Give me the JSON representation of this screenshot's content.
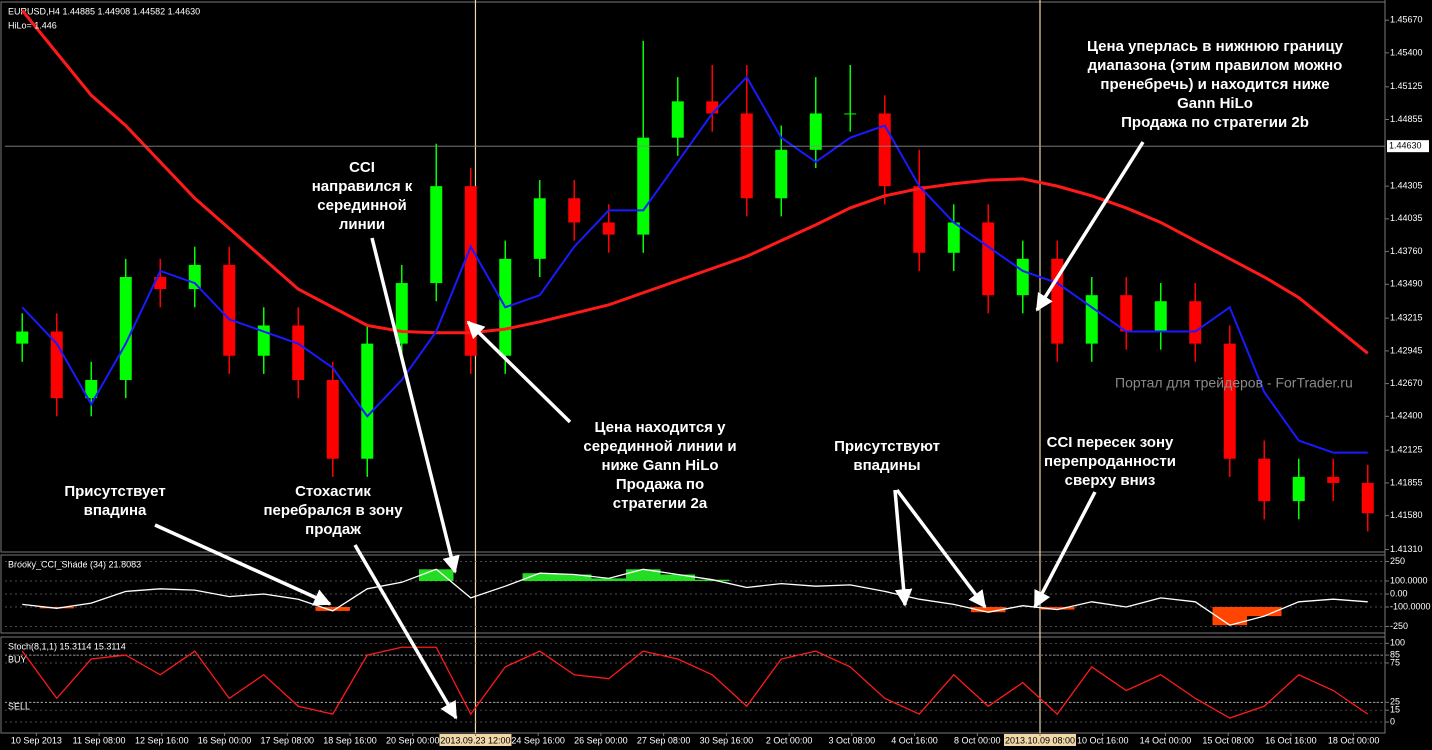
{
  "chart_data": [
    {
      "type": "candlestick",
      "title": "EURUSD,H4 1.44885 1.44908 1.44582 1.44630",
      "subtitle": "HiLo= 1.446",
      "up_color": "#00ff00",
      "down_color": "#ff0000",
      "open": [
        1.43,
        1.431,
        1.4255,
        1.427,
        1.4355,
        1.4345,
        1.4365,
        1.429,
        1.4315,
        1.427,
        1.4205,
        1.43,
        1.435,
        1.443,
        1.429,
        1.437,
        1.442,
        1.44,
        1.439,
        1.447,
        1.45,
        1.449,
        1.442,
        1.446,
        1.449,
        1.449,
        1.443,
        1.4375,
        1.44,
        1.434,
        1.437,
        1.43,
        1.434,
        1.431,
        1.4335,
        1.43,
        1.4205,
        1.417,
        1.419,
        1.4185
      ],
      "high": [
        1.4325,
        1.4325,
        1.4285,
        1.437,
        1.437,
        1.438,
        1.438,
        1.433,
        1.433,
        1.4285,
        1.4315,
        1.4365,
        1.4465,
        1.4445,
        1.4385,
        1.4435,
        1.4435,
        1.4415,
        1.455,
        1.452,
        1.453,
        1.453,
        1.448,
        1.452,
        1.453,
        1.4505,
        1.446,
        1.4415,
        1.4415,
        1.4385,
        1.4385,
        1.4355,
        1.4355,
        1.435,
        1.435,
        1.4315,
        1.422,
        1.4205,
        1.4205,
        1.42
      ],
      "low": [
        1.4285,
        1.424,
        1.424,
        1.4255,
        1.433,
        1.433,
        1.4275,
        1.4275,
        1.4255,
        1.419,
        1.419,
        1.4285,
        1.4335,
        1.4275,
        1.4275,
        1.4355,
        1.4385,
        1.4375,
        1.4375,
        1.4455,
        1.4475,
        1.4405,
        1.4405,
        1.4445,
        1.4475,
        1.4415,
        1.436,
        1.436,
        1.4325,
        1.4325,
        1.4285,
        1.4285,
        1.4295,
        1.4295,
        1.4285,
        1.419,
        1.4155,
        1.4155,
        1.417,
        1.4145
      ],
      "close": [
        1.431,
        1.4255,
        1.427,
        1.4355,
        1.4345,
        1.4365,
        1.429,
        1.4315,
        1.427,
        1.4205,
        1.43,
        1.435,
        1.443,
        1.429,
        1.437,
        1.442,
        1.44,
        1.439,
        1.447,
        1.45,
        1.449,
        1.442,
        1.446,
        1.449,
        1.449,
        1.443,
        1.4375,
        1.44,
        1.434,
        1.437,
        1.43,
        1.434,
        1.431,
        1.4335,
        1.43,
        1.4205,
        1.417,
        1.419,
        1.4185,
        1.416
      ],
      "lines": [
        {
          "color": "#ff1a1a",
          "width": 3,
          "values": [
            1.4575,
            1.454,
            1.4505,
            1.448,
            1.445,
            1.442,
            1.4395,
            1.437,
            1.4345,
            1.433,
            1.4315,
            1.431,
            1.4309,
            1.4309,
            1.4312,
            1.4318,
            1.4325,
            1.4332,
            1.4342,
            1.4352,
            1.4362,
            1.4372,
            1.4385,
            1.4398,
            1.4412,
            1.4422,
            1.4428,
            1.4432,
            1.4435,
            1.4436,
            1.443,
            1.4422,
            1.4412,
            1.44,
            1.4385,
            1.437,
            1.4355,
            1.4338,
            1.4315,
            1.4292
          ]
        },
        {
          "color": "#1a1aff",
          "width": 2,
          "values": [
            1.433,
            1.43,
            1.425,
            1.43,
            1.436,
            1.435,
            1.432,
            1.431,
            1.43,
            1.428,
            1.424,
            1.427,
            1.431,
            1.438,
            1.433,
            1.434,
            1.438,
            1.441,
            1.441,
            1.445,
            1.449,
            1.452,
            1.447,
            1.445,
            1.447,
            1.448,
            1.443,
            1.44,
            1.438,
            1.436,
            1.435,
            1.433,
            1.431,
            1.431,
            1.431,
            1.433,
            1.426,
            1.422,
            1.421,
            1.421
          ]
        }
      ],
      "current_price": {
        "value": 1.4463,
        "label": "1.44630"
      },
      "ylim": [
        1.4128,
        1.4582
      ],
      "yticks": [
        {
          "value": 1.4567,
          "label": "1.45670"
        },
        {
          "value": 1.454,
          "label": "1.45400"
        },
        {
          "value": 1.4512,
          "label": "1.45125"
        },
        {
          "value": 1.4485,
          "label": "1.44855"
        },
        {
          "value": 1.443,
          "label": "1.44305"
        },
        {
          "value": 1.4403,
          "label": "1.44035"
        },
        {
          "value": 1.4376,
          "label": "1.43760"
        },
        {
          "value": 1.4349,
          "label": "1.43490"
        },
        {
          "value": 1.4321,
          "label": "1.43215"
        },
        {
          "value": 1.4294,
          "label": "1.42945"
        },
        {
          "value": 1.4267,
          "label": "1.42670"
        },
        {
          "value": 1.424,
          "label": "1.42400"
        },
        {
          "value": 1.4212,
          "label": "1.42125"
        },
        {
          "value": 1.4185,
          "label": "1.41855"
        },
        {
          "value": 1.4158,
          "label": "1.41580"
        },
        {
          "value": 1.413,
          "label": "1.41310"
        }
      ],
      "time_labels": [
        "10 Sep 2013",
        "11 Sep 08:00",
        "12 Sep 16:00",
        "16 Sep 00:00",
        "17 Sep 08:00",
        "18 Sep 16:00",
        "20 Sep 00:00",
        "2013.09.23 12:00",
        "24 Sep 16:00",
        "26 Sep 00:00",
        "27 Sep 08:00",
        "30 Sep 16:00",
        "2 Oct 00:00",
        "3 Oct 08:00",
        "4 Oct 16:00",
        "8 Oct 00:00",
        "2013.10.09 08:00",
        "10 Oct 16:00",
        "14 Oct 00:00",
        "15 Oct 08:00",
        "16 Oct 16:00",
        "18 Oct 00:00"
      ],
      "watermark": "Портал для трейдеров - ForTrader.ru"
    },
    {
      "type": "line",
      "title": "Brooky_CCI_Shade (34) 21.8083",
      "color": "#ffffff",
      "values": [
        -80,
        -110,
        -70,
        20,
        40,
        30,
        -20,
        0,
        -40,
        -130,
        40,
        90,
        190,
        -30,
        60,
        160,
        150,
        120,
        190,
        150,
        110,
        50,
        80,
        60,
        70,
        20,
        -40,
        -80,
        -140,
        -90,
        -120,
        -60,
        -100,
        -30,
        -60,
        -240,
        -170,
        -60,
        -40,
        -60
      ],
      "shade": {
        "above": 100,
        "below": -100,
        "above_color": "#22dd22",
        "below_color": "#ff4500"
      },
      "ylim": [
        -300,
        300
      ],
      "yticks": [
        250,
        {
          "value": 100,
          "label": "100.0000"
        },
        {
          "value": 0,
          "label": "0.00"
        },
        {
          "value": -100,
          "label": "-100.0000"
        },
        -250
      ],
      "grid": true
    },
    {
      "type": "line",
      "title": "Stoch(8,1,1) 15.3114 15.3114",
      "color": "#ff1a1a",
      "values": [
        90,
        30,
        80,
        85,
        60,
        90,
        30,
        60,
        20,
        10,
        85,
        95,
        95,
        10,
        70,
        90,
        60,
        55,
        90,
        80,
        60,
        20,
        80,
        90,
        70,
        30,
        10,
        60,
        20,
        50,
        10,
        70,
        40,
        60,
        30,
        5,
        20,
        60,
        40,
        10
      ],
      "levels": [
        {
          "value": 85,
          "label": "BUY"
        },
        {
          "value": 25,
          "label": "SELL"
        }
      ],
      "ylim": [
        -14,
        108
      ],
      "yticks": [
        100,
        85,
        75,
        25,
        15,
        0
      ],
      "grid": true
    }
  ],
  "annotations": [
    {
      "lines": [
        "CCI",
        "направился к",
        "серединной",
        "линии"
      ]
    },
    {
      "lines": [
        "Цена находится у",
        "серединной линии и",
        "ниже Gann HiLo",
        "Продажа по",
        "стратегии 2a"
      ]
    },
    {
      "lines": [
        "Цена уперлась в нижнюю границу",
        "диапазона (этим правилом можно",
        "пренебречь) и находится ниже",
        "Gann HiLo",
        "Продажа по стратегии 2b"
      ]
    },
    {
      "lines": [
        "Присутствуют",
        "впадины"
      ]
    },
    {
      "lines": [
        "CCI пересек зону",
        "перепроданности",
        "сверху вниз"
      ]
    },
    {
      "lines": [
        "Присутствует",
        "впадина"
      ]
    },
    {
      "lines": [
        "Стохастик",
        "перебрался в зону",
        "продаж"
      ]
    }
  ]
}
